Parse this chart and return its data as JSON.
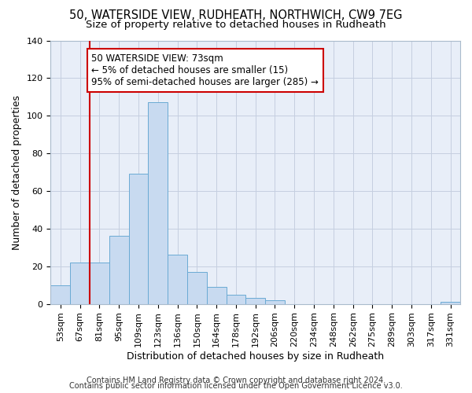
{
  "title1": "50, WATERSIDE VIEW, RUDHEATH, NORTHWICH, CW9 7EG",
  "title2": "Size of property relative to detached houses in Rudheath",
  "xlabel": "Distribution of detached houses by size in Rudheath",
  "ylabel": "Number of detached properties",
  "bar_labels": [
    "53sqm",
    "67sqm",
    "81sqm",
    "95sqm",
    "109sqm",
    "123sqm",
    "136sqm",
    "150sqm",
    "164sqm",
    "178sqm",
    "192sqm",
    "206sqm",
    "220sqm",
    "234sqm",
    "248sqm",
    "262sqm",
    "275sqm",
    "289sqm",
    "303sqm",
    "317sqm",
    "331sqm"
  ],
  "bar_values": [
    10,
    22,
    22,
    36,
    69,
    107,
    26,
    17,
    9,
    5,
    3,
    2,
    0,
    0,
    0,
    0,
    0,
    0,
    0,
    0,
    1
  ],
  "bar_color": "#c8daf0",
  "bar_edge_color": "#6aaad4",
  "grid_color": "#c5cfe0",
  "bg_color": "#e8eef8",
  "vline_x": 1.5,
  "vline_color": "#cc0000",
  "annotation_text": "50 WATERSIDE VIEW: 73sqm\n← 5% of detached houses are smaller (15)\n95% of semi-detached houses are larger (285) →",
  "annotation_box_color": "#cc0000",
  "ylim": [
    0,
    140
  ],
  "footer1": "Contains HM Land Registry data © Crown copyright and database right 2024.",
  "footer2": "Contains public sector information licensed under the Open Government Licence v3.0.",
  "title1_fontsize": 10.5,
  "title2_fontsize": 9.5,
  "xlabel_fontsize": 9,
  "ylabel_fontsize": 9,
  "tick_fontsize": 8,
  "annotation_fontsize": 8.5,
  "footer_fontsize": 7
}
